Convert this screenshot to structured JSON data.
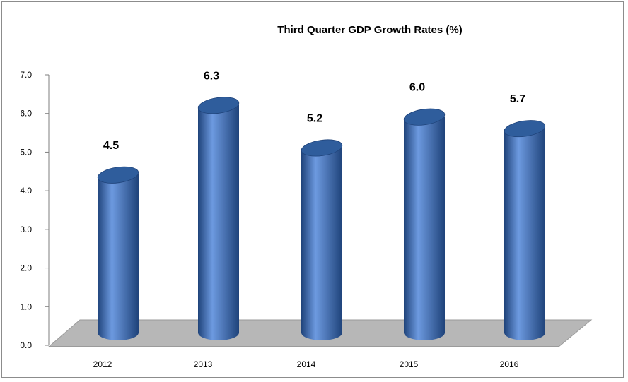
{
  "colors": {
    "bar_top": "#2f5d9c",
    "bar_light": "#6d9ae0",
    "bar_dark": "#1f437a",
    "floor": "#b7b7b7",
    "floor_edge": "#9a9a9a"
  },
  "chart_data": {
    "type": "bar",
    "title": "Third Quarter GDP Growth Rates (%)",
    "xlabel": "",
    "ylabel": "",
    "categories": [
      "2012",
      "2013",
      "2014",
      "2015",
      "2016"
    ],
    "series": [
      {
        "values": [
          4.5,
          6.3,
          5.2,
          6.0,
          5.7
        ]
      }
    ],
    "data_labels": [
      "4.5",
      "6.3",
      "5.2",
      "6.0",
      "5.7"
    ],
    "y_ticks": [
      "0.0",
      "1.0",
      "2.0",
      "3.0",
      "4.0",
      "5.0",
      "6.0",
      "7.0"
    ],
    "ylim": [
      0,
      7
    ],
    "grid": false,
    "legend": "none",
    "style": "3d-cylinder"
  }
}
